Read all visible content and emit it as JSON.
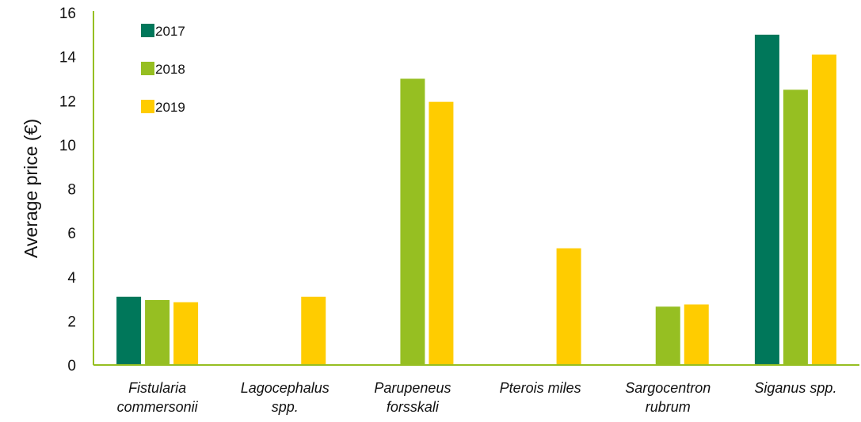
{
  "chart_data": {
    "type": "bar",
    "title": "",
    "xlabel": "",
    "ylabel": "Average price (€)",
    "ylim": [
      0,
      16
    ],
    "yticks": [
      0,
      2,
      4,
      6,
      8,
      10,
      12,
      14,
      16
    ],
    "grid": false,
    "legend_position": "top-left",
    "categories": [
      [
        "Fistularia",
        "commersonii"
      ],
      [
        "Lagocephalus",
        "spp."
      ],
      [
        "Parupeneus",
        "forsskali"
      ],
      [
        "Pterois miles"
      ],
      [
        "Sargocentron",
        "rubrum"
      ],
      [
        "Siganus spp."
      ]
    ],
    "series": [
      {
        "name": "2017",
        "color": "#00775a",
        "values": [
          3.1,
          null,
          null,
          null,
          null,
          15.0
        ]
      },
      {
        "name": "2018",
        "color": "#96bf22",
        "values": [
          2.95,
          null,
          13.0,
          null,
          2.65,
          12.5
        ]
      },
      {
        "name": "2019",
        "color": "#ffcc00",
        "values": [
          2.85,
          3.1,
          11.95,
          5.3,
          2.75,
          14.1
        ]
      }
    ],
    "axis_color": "#96bf22"
  }
}
